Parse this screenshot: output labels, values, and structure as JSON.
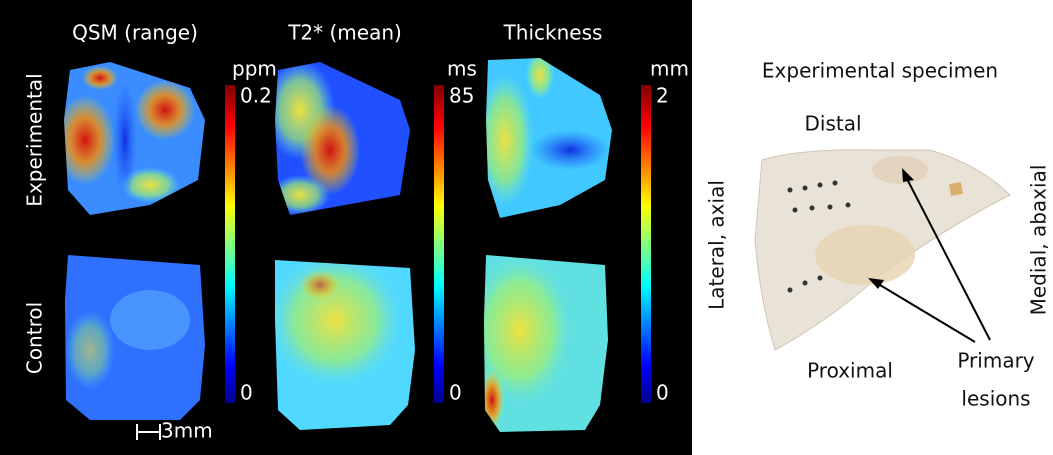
{
  "columns": [
    "QSM (range)",
    "T2* (mean)",
    "Thickness"
  ],
  "rows": [
    "Experimental",
    "Control"
  ],
  "colorbars": [
    {
      "unit": "ppm",
      "max": "0.2",
      "min": "0"
    },
    {
      "unit": "ms",
      "max": "85",
      "min": "0"
    },
    {
      "unit": "mm",
      "max": "2",
      "min": "0"
    }
  ],
  "scale_bar": "3mm",
  "specimen": {
    "title": "Experimental specimen",
    "distal": "Distal",
    "proximal": "Proximal",
    "lateral": "Lateral, axial",
    "medial": "Medial, abaxial",
    "lesions": [
      "Primary",
      "lesions"
    ]
  }
}
